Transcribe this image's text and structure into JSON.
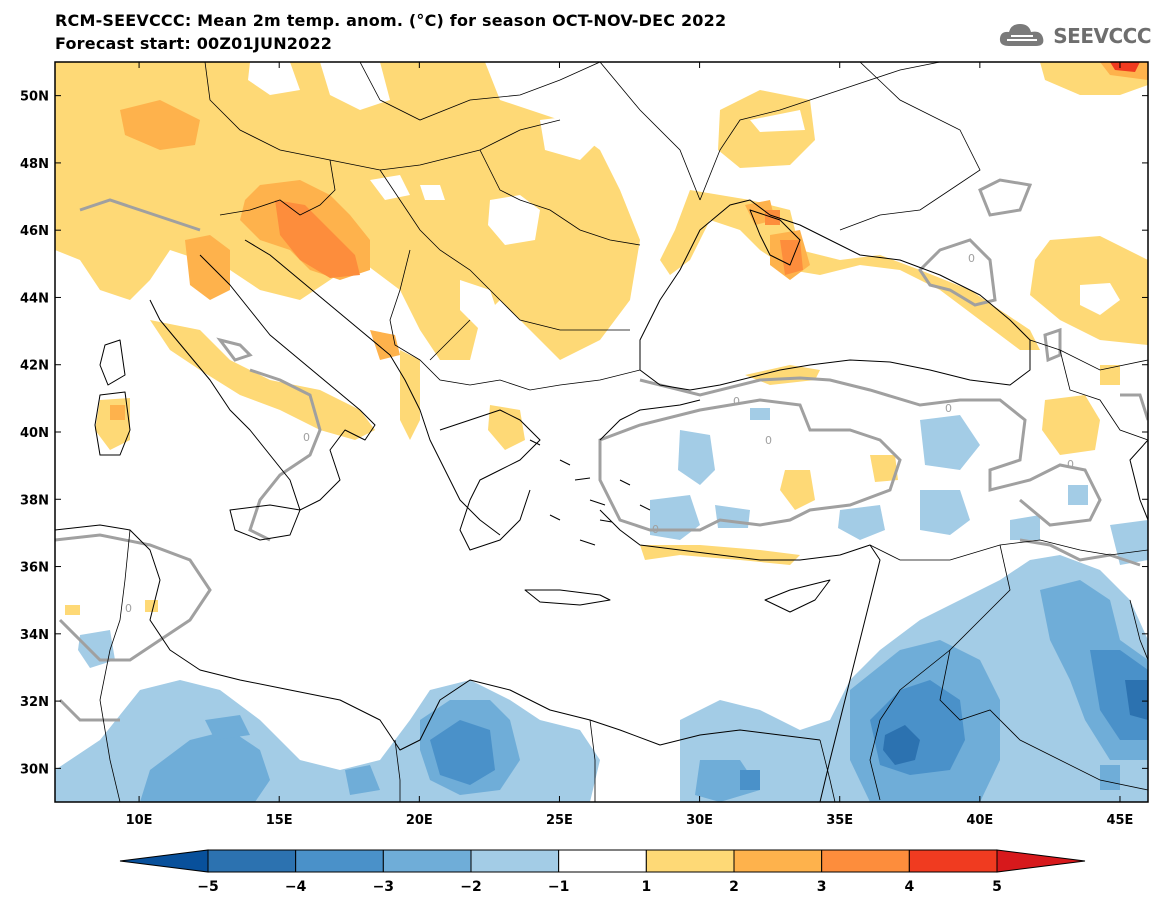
{
  "title": {
    "line1": "RCM-SEEVCCC: Mean 2m temp. anom. (°C) for season OCT-NOV-DEC 2022",
    "line2": "Forecast start: 00Z01JUN2022"
  },
  "logo": {
    "text": "SEEVCCC",
    "icon": "cloud-icon"
  },
  "map": {
    "lon_range": [
      7,
      46
    ],
    "lat_range": [
      29,
      51
    ],
    "lon_ticks": [
      10,
      15,
      20,
      25,
      30,
      35,
      40,
      45
    ],
    "lon_labels": [
      "10E",
      "15E",
      "20E",
      "25E",
      "30E",
      "35E",
      "40E",
      "45E"
    ],
    "lat_ticks": [
      30,
      32,
      34,
      36,
      38,
      40,
      42,
      44,
      46,
      48,
      50
    ],
    "lat_labels": [
      "30N",
      "32N",
      "34N",
      "36N",
      "38N",
      "40N",
      "42N",
      "44N",
      "46N",
      "48N",
      "50N"
    ],
    "contour_label": "0"
  },
  "colorbar": {
    "labels": [
      "−5",
      "−4",
      "−3",
      "−2",
      "−1",
      "1",
      "2",
      "3",
      "4",
      "5"
    ],
    "colors": [
      "#08509b",
      "#2c72b0",
      "#4a91c9",
      "#6fadd8",
      "#a3cce6",
      "#ffffff",
      "#fed976",
      "#feb24c",
      "#fd8d3c",
      "#f03b20",
      "#d7191c"
    ]
  },
  "colors": {
    "warm1": "#fed976",
    "warm2": "#feb24c",
    "warm3": "#fd8d3c",
    "warm4": "#f03b20",
    "cool1": "#a3cce6",
    "cool2": "#6fadd8",
    "cool3": "#4a91c9",
    "cool4": "#2c72b0",
    "contour": "#a0a0a0",
    "coast": "#000000"
  }
}
